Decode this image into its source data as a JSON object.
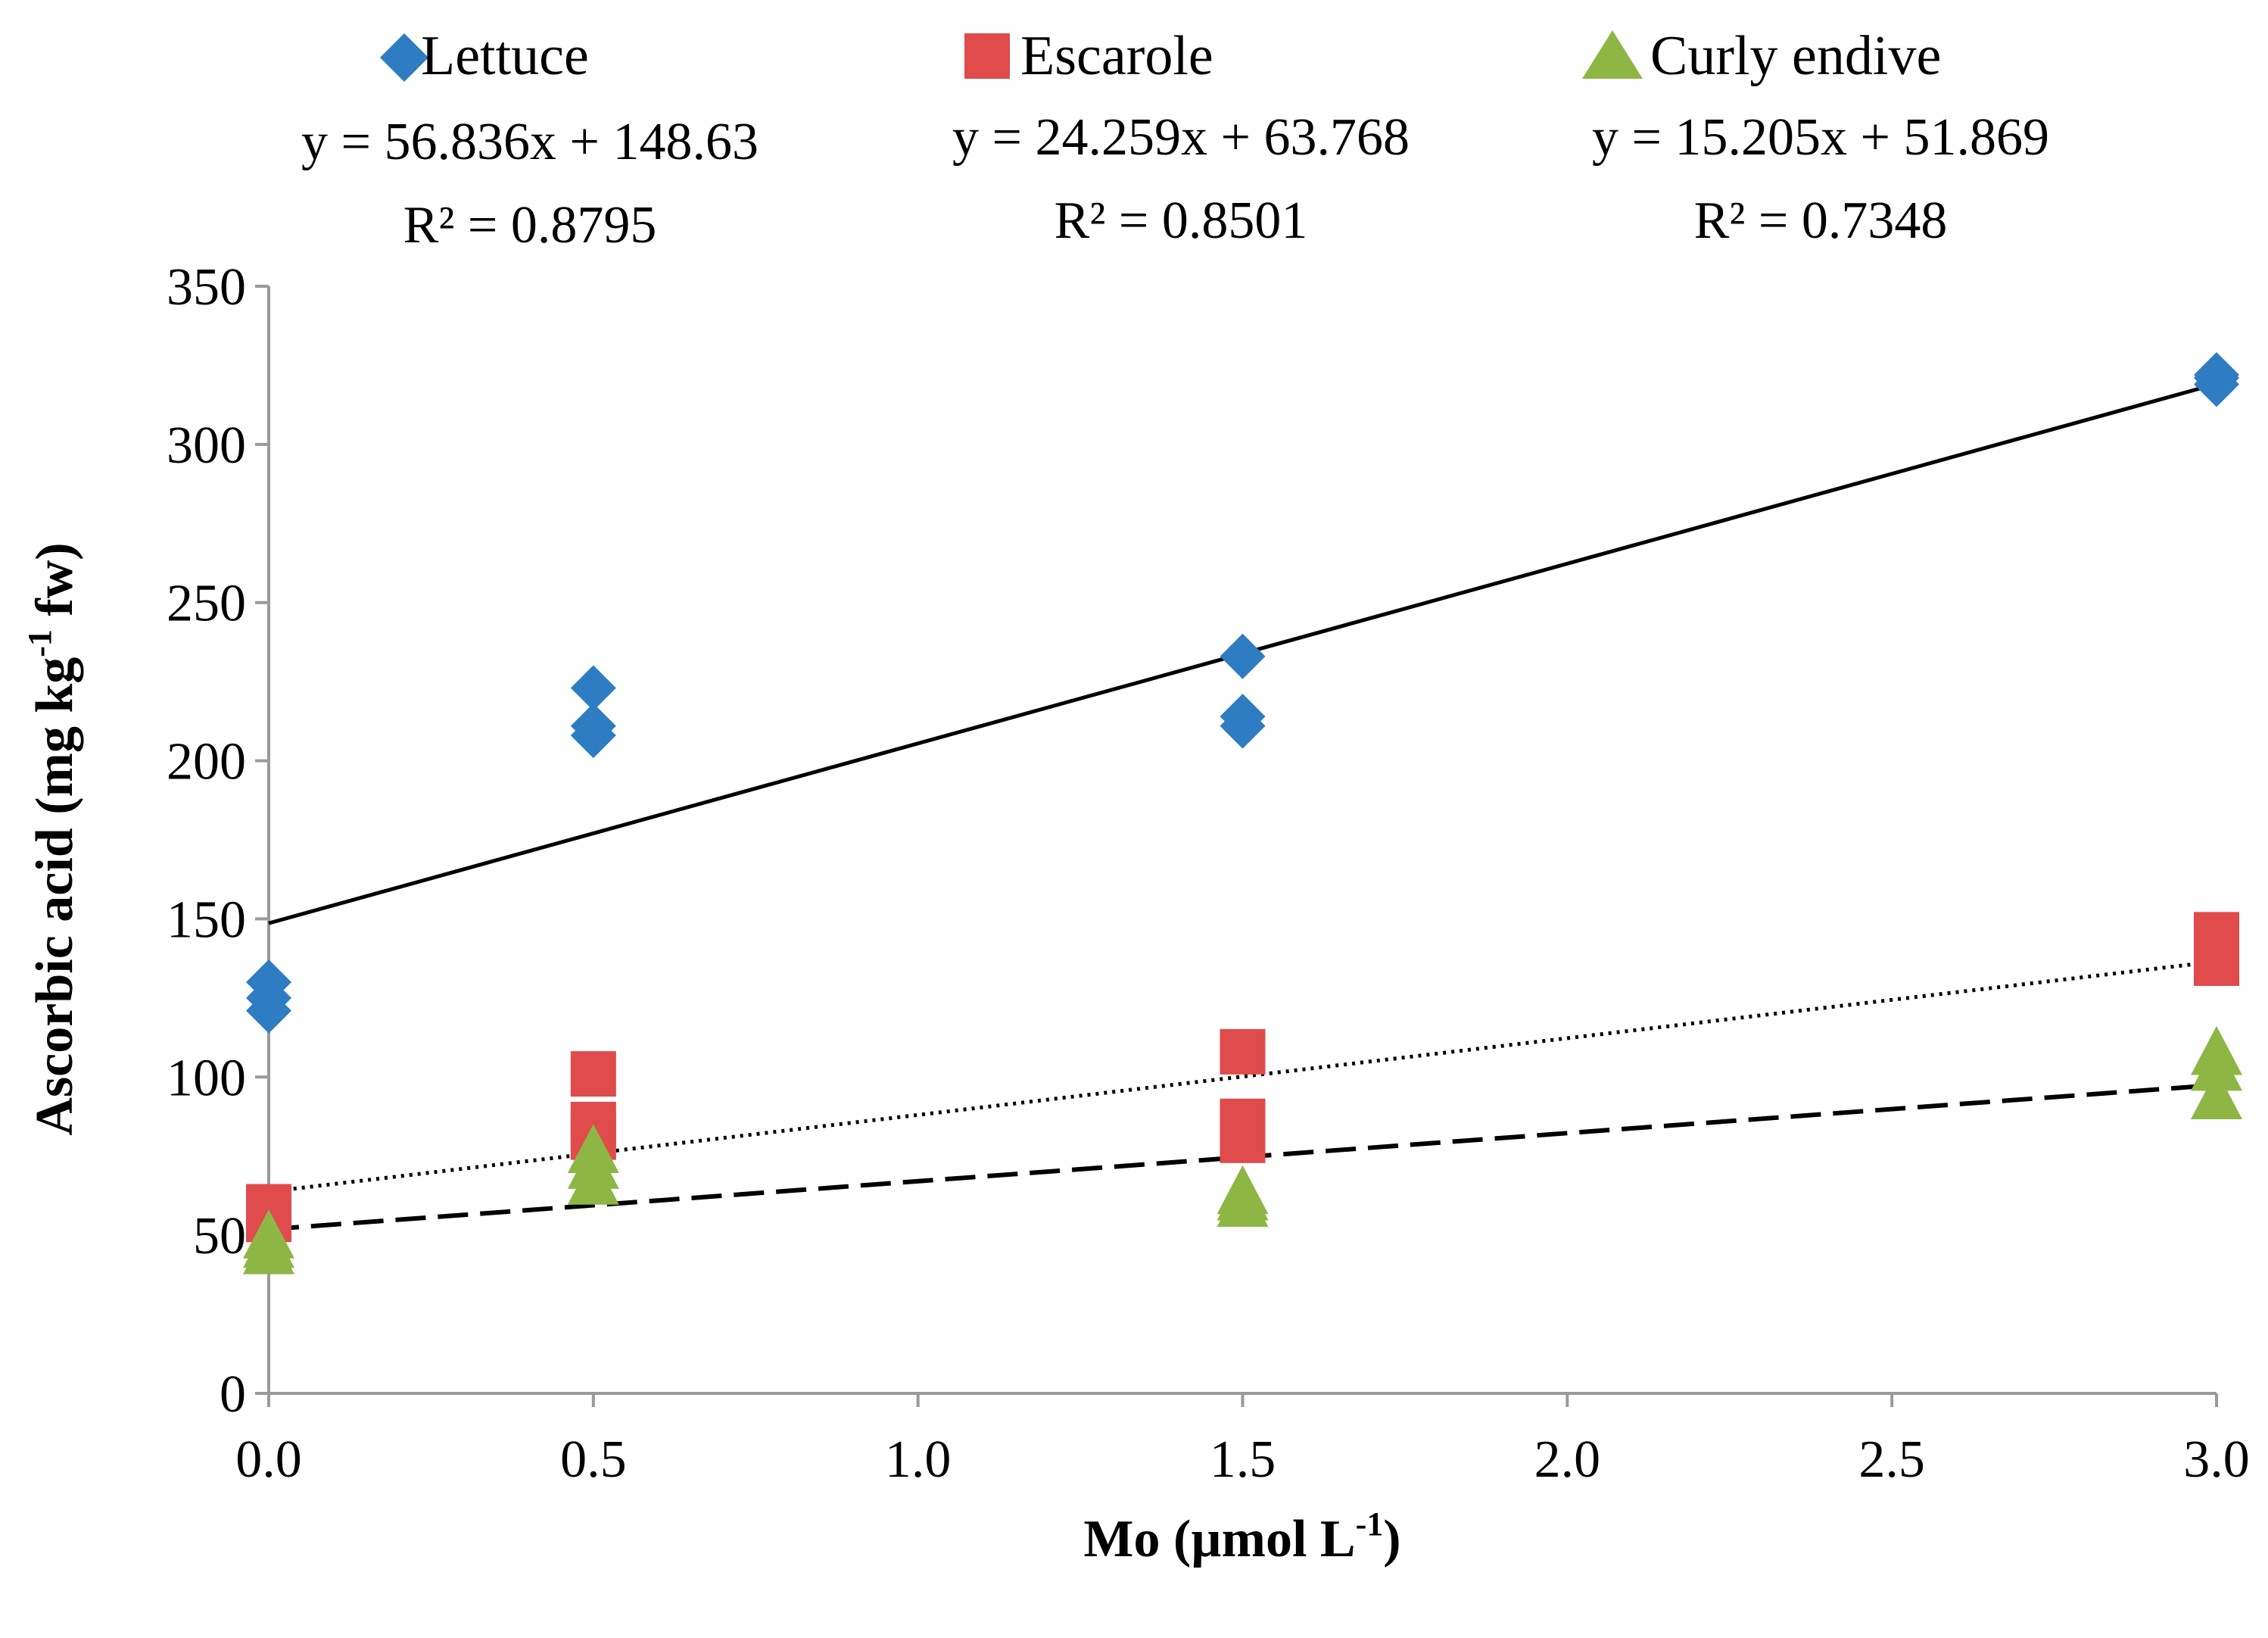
{
  "chart_data": {
    "type": "scatter",
    "title": "",
    "xlabel": "Mo (µmol L",
    "xlabel_sup": "-1",
    "xlabel_end": ")",
    "ylabel": "Ascorbic acid (mg kg",
    "ylabel_sup": "-1",
    "ylabel_end": " fw)",
    "xlim": [
      0,
      3
    ],
    "ylim": [
      0,
      350
    ],
    "xticks": [
      "0.0",
      "0.5",
      "1.0",
      "1.5",
      "2.0",
      "2.5",
      "3.0"
    ],
    "xtick_values": [
      0,
      0.5,
      1,
      1.5,
      2,
      2.5,
      3
    ],
    "yticks": [
      "0",
      "50",
      "100",
      "150",
      "200",
      "250",
      "300",
      "350"
    ],
    "ytick_values": [
      0,
      50,
      100,
      150,
      200,
      250,
      300,
      350
    ],
    "legend_position": "top",
    "series": [
      {
        "name": "Lettuce",
        "marker": "diamond",
        "color": "#2E7CC1",
        "points": [
          [
            0,
            130
          ],
          [
            0,
            125
          ],
          [
            0,
            121
          ],
          [
            0.5,
            223
          ],
          [
            0.5,
            211
          ],
          [
            0.5,
            208
          ],
          [
            1.5,
            233
          ],
          [
            1.5,
            214
          ],
          [
            1.5,
            211
          ],
          [
            3,
            322
          ],
          [
            3,
            321
          ],
          [
            3,
            319
          ]
        ],
        "trendline": {
          "slope": 56.836,
          "intercept": 148.63,
          "style": "solid"
        },
        "equation": "y = 56.836x + 148.63",
        "r2": "R² = 0.8795"
      },
      {
        "name": "Escarole",
        "marker": "square",
        "color": "#E04B4B",
        "points": [
          [
            0,
            59
          ],
          [
            0,
            55
          ],
          [
            0.5,
            101
          ],
          [
            0.5,
            85
          ],
          [
            0.5,
            81
          ],
          [
            1.5,
            108
          ],
          [
            1.5,
            86
          ],
          [
            1.5,
            80
          ],
          [
            3,
            145
          ],
          [
            3,
            140
          ],
          [
            3,
            136
          ]
        ],
        "trendline": {
          "slope": 24.259,
          "intercept": 63.768,
          "style": "dotted"
        },
        "equation": "y = 24.259x + 63.768",
        "r2": "R² = 0.8501"
      },
      {
        "name": "Curly endive",
        "marker": "triangle",
        "color": "#8DB645",
        "points": [
          [
            0,
            50
          ],
          [
            0,
            47
          ],
          [
            0,
            45
          ],
          [
            0.5,
            77
          ],
          [
            0.5,
            72
          ],
          [
            0.5,
            67
          ],
          [
            1.5,
            64
          ],
          [
            1.5,
            62
          ],
          [
            1.5,
            60
          ],
          [
            3,
            108
          ],
          [
            3,
            103
          ],
          [
            3,
            94
          ]
        ],
        "trendline": {
          "slope": 15.205,
          "intercept": 51.869,
          "style": "dashed"
        },
        "equation": "y = 15.205x + 51.869",
        "r2": "R² = 0.7348"
      }
    ]
  }
}
